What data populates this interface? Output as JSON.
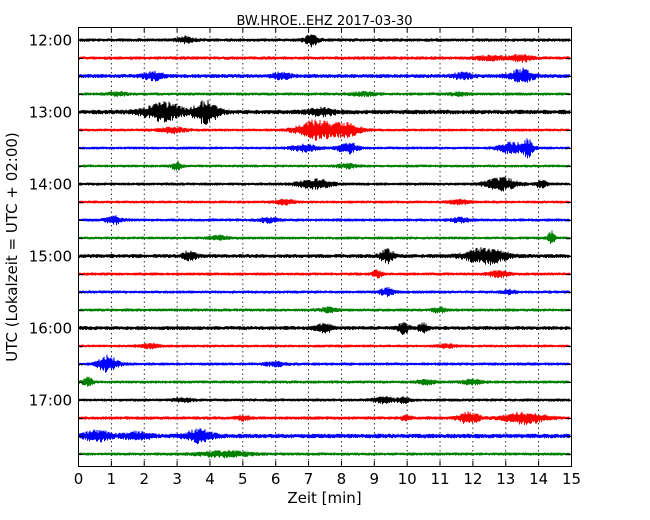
{
  "chart_data": {
    "type": "line",
    "title": "BW.HROE..EHZ 2017-03-30",
    "xlabel": "Zeit  [min]",
    "ylabel": "UTC (Lokalzeit = UTC + 02:00)",
    "xlim": [
      0,
      15
    ],
    "x_ticks": [
      "0",
      "1",
      "2",
      "3",
      "4",
      "5",
      "6",
      "7",
      "8",
      "9",
      "10",
      "11",
      "12",
      "13",
      "14",
      "15"
    ],
    "y_ticks": [
      "12:00",
      "13:00",
      "14:00",
      "15:00",
      "16:00",
      "17:00"
    ],
    "grid": "vertical dotted",
    "color_cycle": [
      "#000000",
      "#ff0000",
      "#0000ff",
      "#008000"
    ],
    "series": [
      {
        "start": "12:00",
        "color": "#000000",
        "noise": 0.25,
        "bursts": [
          [
            3.3,
            0.25,
            0.5
          ],
          [
            7.1,
            0.2,
            1.0
          ]
        ]
      },
      {
        "start": "12:15",
        "color": "#ff0000",
        "noise": 0.25,
        "bursts": [
          [
            12.6,
            0.5,
            0.35
          ],
          [
            13.5,
            0.3,
            0.6
          ]
        ]
      },
      {
        "start": "12:30",
        "color": "#0000ff",
        "noise": 0.3,
        "bursts": [
          [
            2.3,
            0.3,
            0.7
          ],
          [
            6.2,
            0.3,
            0.5
          ],
          [
            11.7,
            0.3,
            0.5
          ],
          [
            13.5,
            0.35,
            1.2
          ]
        ]
      },
      {
        "start": "12:45",
        "color": "#008000",
        "noise": 0.22,
        "bursts": [
          [
            1.2,
            0.3,
            0.3
          ],
          [
            8.7,
            0.4,
            0.3
          ],
          [
            11.6,
            0.3,
            0.25
          ]
        ]
      },
      {
        "start": "13:00",
        "color": "#000000",
        "noise": 0.35,
        "bursts": [
          [
            2.6,
            0.6,
            1.6
          ],
          [
            3.9,
            0.35,
            2.0
          ],
          [
            7.4,
            0.4,
            0.6
          ]
        ]
      },
      {
        "start": "13:15",
        "color": "#ff0000",
        "noise": 0.2,
        "bursts": [
          [
            2.9,
            0.4,
            0.5
          ],
          [
            7.3,
            0.6,
            1.8
          ],
          [
            8.2,
            0.4,
            1.0
          ]
        ]
      },
      {
        "start": "13:30",
        "color": "#0000ff",
        "noise": 0.2,
        "bursts": [
          [
            6.9,
            0.4,
            0.6
          ],
          [
            8.2,
            0.3,
            1.0
          ],
          [
            13.2,
            0.4,
            1.0
          ],
          [
            13.7,
            0.15,
            1.4
          ]
        ]
      },
      {
        "start": "13:45",
        "color": "#008000",
        "noise": 0.2,
        "bursts": [
          [
            3.0,
            0.15,
            0.8
          ],
          [
            8.2,
            0.3,
            0.4
          ]
        ]
      },
      {
        "start": "14:00",
        "color": "#000000",
        "noise": 0.22,
        "bursts": [
          [
            7.2,
            0.5,
            0.8
          ],
          [
            12.9,
            0.5,
            1.1
          ],
          [
            14.1,
            0.15,
            0.8
          ]
        ]
      },
      {
        "start": "14:15",
        "color": "#ff0000",
        "noise": 0.2,
        "bursts": [
          [
            6.3,
            0.3,
            0.4
          ],
          [
            11.6,
            0.3,
            0.4
          ]
        ]
      },
      {
        "start": "14:30",
        "color": "#0000ff",
        "noise": 0.22,
        "bursts": [
          [
            1.1,
            0.25,
            0.7
          ],
          [
            5.8,
            0.3,
            0.4
          ],
          [
            11.6,
            0.3,
            0.4
          ]
        ]
      },
      {
        "start": "14:45",
        "color": "#008000",
        "noise": 0.2,
        "bursts": [
          [
            4.3,
            0.3,
            0.4
          ],
          [
            14.4,
            0.1,
            1.3
          ]
        ]
      },
      {
        "start": "15:00",
        "color": "#000000",
        "noise": 0.3,
        "bursts": [
          [
            3.4,
            0.2,
            0.9
          ],
          [
            9.4,
            0.2,
            1.2
          ],
          [
            12.4,
            0.6,
            1.5
          ]
        ]
      },
      {
        "start": "15:15",
        "color": "#ff0000",
        "noise": 0.22,
        "bursts": [
          [
            9.1,
            0.15,
            0.6
          ],
          [
            12.8,
            0.3,
            0.6
          ]
        ]
      },
      {
        "start": "15:30",
        "color": "#0000ff",
        "noise": 0.22,
        "bursts": [
          [
            9.4,
            0.2,
            0.7
          ],
          [
            13.1,
            0.2,
            0.4
          ]
        ]
      },
      {
        "start": "15:45",
        "color": "#008000",
        "noise": 0.22,
        "bursts": [
          [
            7.6,
            0.25,
            0.4
          ],
          [
            11.0,
            0.2,
            0.5
          ]
        ]
      },
      {
        "start": "16:00",
        "color": "#000000",
        "noise": 0.3,
        "bursts": [
          [
            7.5,
            0.25,
            0.7
          ],
          [
            9.9,
            0.15,
            1.0
          ],
          [
            10.5,
            0.15,
            0.7
          ]
        ]
      },
      {
        "start": "16:15",
        "color": "#ff0000",
        "noise": 0.2,
        "bursts": [
          [
            2.2,
            0.3,
            0.4
          ],
          [
            11.2,
            0.3,
            0.3
          ]
        ]
      },
      {
        "start": "16:30",
        "color": "#0000ff",
        "noise": 0.22,
        "bursts": [
          [
            0.9,
            0.3,
            1.4
          ],
          [
            6.0,
            0.3,
            0.4
          ]
        ]
      },
      {
        "start": "16:45",
        "color": "#008000",
        "noise": 0.22,
        "bursts": [
          [
            0.3,
            0.15,
            0.8
          ],
          [
            10.6,
            0.3,
            0.4
          ],
          [
            12.0,
            0.3,
            0.4
          ]
        ]
      },
      {
        "start": "17:00",
        "color": "#000000",
        "noise": 0.22,
        "bursts": [
          [
            3.2,
            0.3,
            0.3
          ],
          [
            9.3,
            0.3,
            0.5
          ],
          [
            9.9,
            0.2,
            0.5
          ]
        ]
      },
      {
        "start": "17:15",
        "color": "#ff0000",
        "noise": 0.25,
        "bursts": [
          [
            5.0,
            0.2,
            0.4
          ],
          [
            10.0,
            0.15,
            0.4
          ],
          [
            11.9,
            0.3,
            1.0
          ],
          [
            13.6,
            0.6,
            1.0
          ]
        ]
      },
      {
        "start": "17:30",
        "color": "#0000ff",
        "noise": 0.35,
        "bursts": [
          [
            0.6,
            0.4,
            0.9
          ],
          [
            1.8,
            0.4,
            0.6
          ],
          [
            3.7,
            0.4,
            1.1
          ]
        ]
      },
      {
        "start": "17:45",
        "color": "#008000",
        "noise": 0.22,
        "bursts": [
          [
            4.5,
            0.8,
            0.5
          ]
        ]
      }
    ]
  }
}
